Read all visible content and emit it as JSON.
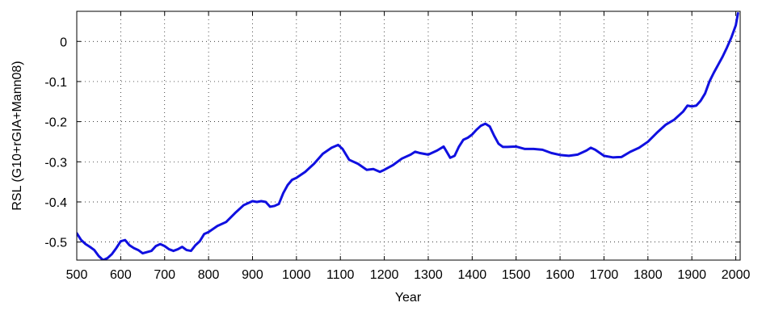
{
  "chart_data": {
    "type": "line",
    "title": "",
    "xlabel": "Year",
    "ylabel": "RSL (G10+rGIA+Mann08)",
    "xlim": [
      500,
      2010
    ],
    "ylim": [
      -0.545,
      0.075
    ],
    "xticks": [
      500,
      600,
      700,
      800,
      900,
      1000,
      1100,
      1200,
      1300,
      1400,
      1500,
      1600,
      1700,
      1800,
      1900,
      2000
    ],
    "yticks": [
      -0.5,
      -0.4,
      -0.3,
      -0.2,
      -0.1,
      0
    ],
    "ytick_labels": [
      "-0.5",
      "-0.4",
      "-0.3",
      "-0.2",
      "-0.1",
      "0"
    ],
    "grid": true,
    "legend": "none",
    "series": [
      {
        "color": "#1010e0",
        "x": [
          500,
          510,
          520,
          530,
          540,
          550,
          560,
          570,
          580,
          590,
          600,
          610,
          620,
          630,
          640,
          650,
          660,
          670,
          680,
          690,
          700,
          710,
          720,
          730,
          740,
          750,
          760,
          770,
          780,
          790,
          800,
          820,
          840,
          860,
          880,
          900,
          910,
          920,
          930,
          940,
          950,
          960,
          970,
          980,
          990,
          1000,
          1020,
          1040,
          1060,
          1080,
          1095,
          1105,
          1120,
          1140,
          1160,
          1175,
          1190,
          1200,
          1220,
          1240,
          1260,
          1270,
          1280,
          1300,
          1320,
          1335,
          1350,
          1360,
          1370,
          1380,
          1390,
          1400,
          1410,
          1420,
          1430,
          1440,
          1450,
          1460,
          1470,
          1480,
          1500,
          1520,
          1540,
          1560,
          1580,
          1600,
          1620,
          1640,
          1660,
          1670,
          1680,
          1700,
          1720,
          1740,
          1760,
          1780,
          1800,
          1820,
          1840,
          1860,
          1880,
          1890,
          1900,
          1910,
          1920,
          1930,
          1940,
          1950,
          1960,
          1970,
          1980,
          1990,
          2000,
          2005
        ],
        "y": [
          -0.478,
          -0.495,
          -0.505,
          -0.512,
          -0.52,
          -0.535,
          -0.545,
          -0.54,
          -0.53,
          -0.515,
          -0.498,
          -0.495,
          -0.508,
          -0.515,
          -0.52,
          -0.528,
          -0.525,
          -0.522,
          -0.51,
          -0.505,
          -0.51,
          -0.518,
          -0.522,
          -0.518,
          -0.512,
          -0.52,
          -0.522,
          -0.508,
          -0.498,
          -0.48,
          -0.475,
          -0.46,
          -0.45,
          -0.428,
          -0.408,
          -0.398,
          -0.4,
          -0.398,
          -0.4,
          -0.412,
          -0.41,
          -0.405,
          -0.378,
          -0.358,
          -0.345,
          -0.34,
          -0.325,
          -0.305,
          -0.28,
          -0.265,
          -0.258,
          -0.268,
          -0.295,
          -0.305,
          -0.32,
          -0.318,
          -0.325,
          -0.32,
          -0.308,
          -0.292,
          -0.282,
          -0.275,
          -0.278,
          -0.282,
          -0.272,
          -0.262,
          -0.29,
          -0.285,
          -0.262,
          -0.245,
          -0.24,
          -0.232,
          -0.22,
          -0.21,
          -0.205,
          -0.212,
          -0.235,
          -0.255,
          -0.263,
          -0.263,
          -0.262,
          -0.268,
          -0.268,
          -0.27,
          -0.278,
          -0.283,
          -0.285,
          -0.282,
          -0.272,
          -0.265,
          -0.27,
          -0.285,
          -0.289,
          -0.288,
          -0.275,
          -0.265,
          -0.25,
          -0.228,
          -0.208,
          -0.195,
          -0.175,
          -0.16,
          -0.162,
          -0.16,
          -0.148,
          -0.13,
          -0.1,
          -0.078,
          -0.058,
          -0.038,
          -0.015,
          0.01,
          0.04,
          0.07
        ]
      }
    ]
  }
}
